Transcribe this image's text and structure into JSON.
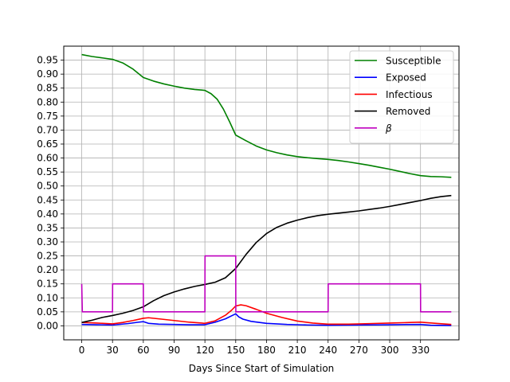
{
  "chart_data": {
    "type": "line",
    "xlabel": "Days Since Start of Simulation",
    "ylabel": "",
    "xlim": [
      -17.5,
      367.5
    ],
    "ylim": [
      -0.05,
      1.0
    ],
    "xticks": [
      0,
      30,
      60,
      90,
      120,
      150,
      180,
      210,
      240,
      270,
      300,
      330
    ],
    "xtick_labels": [
      "0",
      "30",
      "60",
      "90",
      "120",
      "150",
      "180",
      "210",
      "240",
      "270",
      "300",
      "330"
    ],
    "yticks": [
      0.0,
      0.05,
      0.1,
      0.15,
      0.2,
      0.25,
      0.3,
      0.35,
      0.4,
      0.45,
      0.5,
      0.55,
      0.6,
      0.65,
      0.7,
      0.75,
      0.8,
      0.85,
      0.9,
      0.95
    ],
    "ytick_labels": [
      "0.00",
      "0.05",
      "0.10",
      "0.15",
      "0.20",
      "0.25",
      "0.30",
      "0.35",
      "0.40",
      "0.45",
      "0.50",
      "0.55",
      "0.60",
      "0.65",
      "0.70",
      "0.75",
      "0.80",
      "0.85",
      "0.90",
      "0.95"
    ],
    "grid": true,
    "legend_position": "top-right",
    "series": [
      {
        "name": "Susceptible",
        "color": "#008000",
        "points": [
          [
            0,
            0.97
          ],
          [
            10,
            0.963
          ],
          [
            20,
            0.958
          ],
          [
            30,
            0.953
          ],
          [
            40,
            0.94
          ],
          [
            50,
            0.918
          ],
          [
            55,
            0.903
          ],
          [
            60,
            0.888
          ],
          [
            70,
            0.875
          ],
          [
            80,
            0.865
          ],
          [
            90,
            0.857
          ],
          [
            100,
            0.85
          ],
          [
            110,
            0.845
          ],
          [
            120,
            0.842
          ],
          [
            126,
            0.83
          ],
          [
            132,
            0.81
          ],
          [
            138,
            0.775
          ],
          [
            144,
            0.73
          ],
          [
            150,
            0.682
          ],
          [
            160,
            0.662
          ],
          [
            170,
            0.643
          ],
          [
            180,
            0.629
          ],
          [
            190,
            0.619
          ],
          [
            200,
            0.611
          ],
          [
            210,
            0.605
          ],
          [
            220,
            0.601
          ],
          [
            230,
            0.598
          ],
          [
            240,
            0.595
          ],
          [
            250,
            0.591
          ],
          [
            260,
            0.586
          ],
          [
            270,
            0.58
          ],
          [
            280,
            0.574
          ],
          [
            290,
            0.567
          ],
          [
            300,
            0.56
          ],
          [
            310,
            0.552
          ],
          [
            320,
            0.544
          ],
          [
            330,
            0.537
          ],
          [
            340,
            0.534
          ],
          [
            350,
            0.533
          ],
          [
            360,
            0.531
          ]
        ]
      },
      {
        "name": "Exposed",
        "color": "#0000ff",
        "points": [
          [
            0,
            0.005
          ],
          [
            15,
            0.004
          ],
          [
            30,
            0.003
          ],
          [
            45,
            0.008
          ],
          [
            55,
            0.013
          ],
          [
            60,
            0.015
          ],
          [
            65,
            0.009
          ],
          [
            75,
            0.006
          ],
          [
            90,
            0.005
          ],
          [
            105,
            0.004
          ],
          [
            120,
            0.004
          ],
          [
            130,
            0.013
          ],
          [
            140,
            0.025
          ],
          [
            146,
            0.036
          ],
          [
            150,
            0.043
          ],
          [
            153,
            0.032
          ],
          [
            157,
            0.024
          ],
          [
            165,
            0.016
          ],
          [
            180,
            0.009
          ],
          [
            200,
            0.005
          ],
          [
            220,
            0.003
          ],
          [
            240,
            0.002
          ],
          [
            270,
            0.003
          ],
          [
            300,
            0.004
          ],
          [
            330,
            0.005
          ],
          [
            340,
            0.002
          ],
          [
            360,
            0.001
          ]
        ]
      },
      {
        "name": "Infectious",
        "color": "#ff0000",
        "points": [
          [
            0,
            0.012
          ],
          [
            15,
            0.01
          ],
          [
            30,
            0.007
          ],
          [
            40,
            0.012
          ],
          [
            50,
            0.019
          ],
          [
            60,
            0.027
          ],
          [
            65,
            0.029
          ],
          [
            75,
            0.025
          ],
          [
            90,
            0.019
          ],
          [
            105,
            0.013
          ],
          [
            120,
            0.009
          ],
          [
            130,
            0.018
          ],
          [
            140,
            0.038
          ],
          [
            146,
            0.056
          ],
          [
            150,
            0.071
          ],
          [
            155,
            0.075
          ],
          [
            160,
            0.072
          ],
          [
            170,
            0.059
          ],
          [
            180,
            0.045
          ],
          [
            195,
            0.03
          ],
          [
            210,
            0.017
          ],
          [
            225,
            0.01
          ],
          [
            240,
            0.006
          ],
          [
            260,
            0.006
          ],
          [
            280,
            0.008
          ],
          [
            300,
            0.01
          ],
          [
            320,
            0.012
          ],
          [
            330,
            0.013
          ],
          [
            345,
            0.009
          ],
          [
            360,
            0.005
          ]
        ]
      },
      {
        "name": "Removed",
        "color": "#000000",
        "points": [
          [
            0,
            0.012
          ],
          [
            10,
            0.02
          ],
          [
            20,
            0.03
          ],
          [
            30,
            0.037
          ],
          [
            40,
            0.045
          ],
          [
            50,
            0.055
          ],
          [
            60,
            0.068
          ],
          [
            70,
            0.09
          ],
          [
            80,
            0.108
          ],
          [
            90,
            0.121
          ],
          [
            100,
            0.132
          ],
          [
            110,
            0.141
          ],
          [
            120,
            0.148
          ],
          [
            130,
            0.156
          ],
          [
            140,
            0.172
          ],
          [
            150,
            0.205
          ],
          [
            160,
            0.255
          ],
          [
            170,
            0.298
          ],
          [
            180,
            0.33
          ],
          [
            190,
            0.352
          ],
          [
            200,
            0.367
          ],
          [
            210,
            0.378
          ],
          [
            220,
            0.387
          ],
          [
            230,
            0.394
          ],
          [
            240,
            0.399
          ],
          [
            250,
            0.403
          ],
          [
            260,
            0.407
          ],
          [
            270,
            0.411
          ],
          [
            280,
            0.416
          ],
          [
            290,
            0.421
          ],
          [
            300,
            0.427
          ],
          [
            310,
            0.434
          ],
          [
            320,
            0.441
          ],
          [
            330,
            0.448
          ],
          [
            340,
            0.456
          ],
          [
            350,
            0.462
          ],
          [
            360,
            0.466
          ]
        ]
      },
      {
        "name": "β",
        "color": "#bf00bf",
        "points": [
          [
            0,
            0.15
          ],
          [
            0.6,
            0.05
          ],
          [
            30,
            0.05
          ],
          [
            30.1,
            0.15
          ],
          [
            60,
            0.15
          ],
          [
            60.1,
            0.05
          ],
          [
            120,
            0.05
          ],
          [
            120.1,
            0.25
          ],
          [
            150,
            0.25
          ],
          [
            150.1,
            0.05
          ],
          [
            240,
            0.05
          ],
          [
            240.1,
            0.15
          ],
          [
            330,
            0.15
          ],
          [
            330.1,
            0.05
          ],
          [
            360,
            0.05
          ]
        ]
      }
    ]
  }
}
